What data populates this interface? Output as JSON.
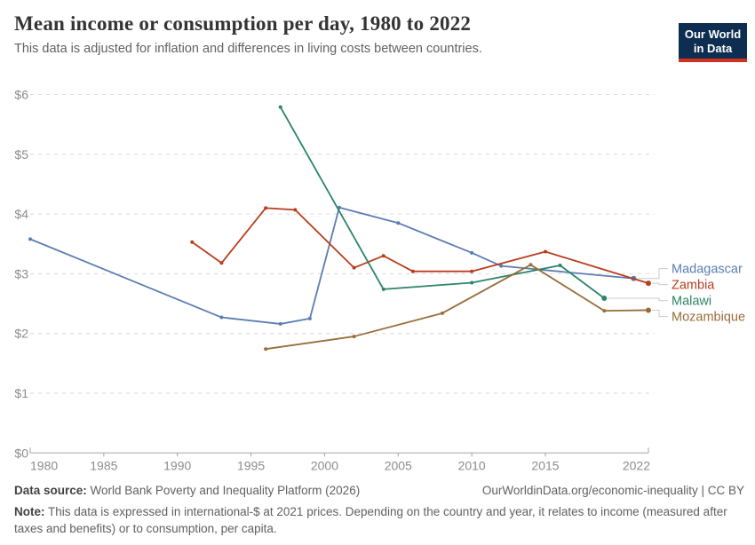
{
  "header": {
    "title": "Mean income or consumption per day, 1980 to 2022",
    "subtitle": "This data is adjusted for inflation and differences in living costs between countries.",
    "logo": {
      "line1": "Our World",
      "line2": "in Data"
    }
  },
  "chart_data": {
    "type": "line",
    "title": "Mean income or consumption per day, 1980 to 2022",
    "xlabel": "",
    "ylabel": "",
    "grid": "horizontal-dashed",
    "legend_position": "right-of-lines",
    "x_axis": {
      "range": [
        1980,
        2022
      ],
      "ticks": [
        1980,
        1985,
        1990,
        1995,
        2000,
        2005,
        2010,
        2015,
        2022
      ]
    },
    "y_axis": {
      "range": [
        0,
        6
      ],
      "tick_values": [
        0,
        1,
        2,
        3,
        4,
        5,
        6
      ],
      "tick_labels": [
        "$0",
        "$1",
        "$2",
        "$3",
        "$4",
        "$5",
        "$6"
      ]
    },
    "series": [
      {
        "name": "Madagascar",
        "color": "#5b7db3",
        "points": [
          [
            1980,
            3.58
          ],
          [
            1993,
            2.27
          ],
          [
            1997,
            2.16
          ],
          [
            1999,
            2.25
          ],
          [
            2001,
            4.11
          ],
          [
            2005,
            3.85
          ],
          [
            2010,
            3.35
          ],
          [
            2012,
            3.13
          ],
          [
            2021,
            2.92
          ]
        ]
      },
      {
        "name": "Zambia",
        "color": "#b93d1d",
        "points": [
          [
            1991,
            3.53
          ],
          [
            1993,
            3.18
          ],
          [
            1996,
            4.1
          ],
          [
            1998,
            4.07
          ],
          [
            2002,
            3.1
          ],
          [
            2004,
            3.3
          ],
          [
            2006,
            3.04
          ],
          [
            2010,
            3.04
          ],
          [
            2015,
            3.37
          ],
          [
            2022,
            2.84
          ]
        ]
      },
      {
        "name": "Malawi",
        "color": "#2c8465",
        "points": [
          [
            1997,
            5.79
          ],
          [
            2004,
            2.74
          ],
          [
            2010,
            2.85
          ],
          [
            2016,
            3.14
          ],
          [
            2019,
            2.59
          ]
        ]
      },
      {
        "name": "Mozambique",
        "color": "#996d39",
        "points": [
          [
            1996,
            1.74
          ],
          [
            2002,
            1.95
          ],
          [
            2008,
            2.34
          ],
          [
            2014,
            3.15
          ],
          [
            2019,
            2.38
          ],
          [
            2022,
            2.39
          ]
        ]
      }
    ]
  },
  "footer": {
    "datasource_label": "Data source:",
    "datasource_value": "World Bank Poverty and Inequality Platform (2026)",
    "rights": "OurWorldinData.org/economic-inequality | CC BY",
    "note_label": "Note:",
    "note_text": "This data is expressed in international-$ at 2021 prices. Depending on the country and year, it relates to income (measured after taxes and benefits) or to consumption, per capita."
  }
}
